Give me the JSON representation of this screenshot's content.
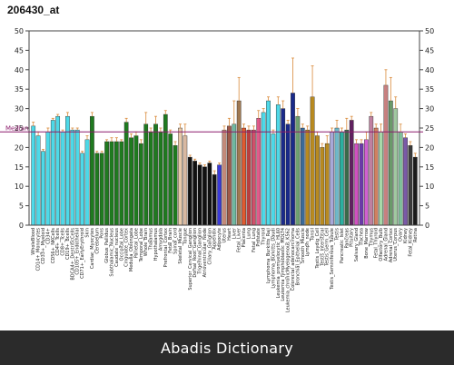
{
  "chart_data": {
    "type": "bar",
    "title": "206430_at",
    "ylim": [
      0,
      50
    ],
    "yticks": [
      "0",
      "5",
      "10",
      "15",
      "20",
      "25",
      "30",
      "35",
      "40",
      "45",
      "50"
    ],
    "median_value": 24,
    "median_label": "Median",
    "median_color": "#8b1a6b",
    "categories": [
      "WholeBlood",
      "CD14+_Monocytes",
      "CD33+_Myeloid",
      "CD34+",
      "CD56+_NKCells",
      "CD4+_Tcells",
      "CD8+_Tcells",
      "CD19+_Bcells",
      "BDCA4+_DentriticCells",
      "CD105+_Endothelial",
      "CD71+_EarlyErythroid",
      "Skin",
      "Cardiac_Myocytes",
      "Cerebellum",
      "Pons",
      "Globus_Pallidus",
      "Subthalamic_Nucleus",
      "Caudate_nucleus",
      "Occipital_Lobe",
      "Cingulate_Cortex",
      "Medulla_Oblongata",
      "Parietal_Lobe",
      "Temporal_Lobe",
      "Whole_Brain",
      "Thalamus",
      "Hypothalamus",
      "Amygdala",
      "Prefrontal_Cortex",
      "Fetal_Brain",
      "Spinal_cord",
      "Skeletal_Muscle",
      "Tongue",
      "Superior_Cervical_Ganglion",
      "Dorsal_Root_Ganglion",
      "Trigeminal_Ganglion",
      "Atrioventricular_Node",
      "Ciliary_Ganglion",
      "Appendix",
      "Adipocyte",
      "Uterus",
      "Heart",
      "Liver",
      "Fetal_Liver",
      "Placenta",
      "Lung",
      "Fetal_Lung",
      "Prostate",
      "Thyroid",
      "Lymphoma_Burkitts_Raji",
      "Lymphoma_Burkitts_Daudi",
      "Leukemia_promyelocytic_HL60",
      "Leukemia_lymphoblastic_MOLT4",
      "Leukemia_chronicMyelogenous_K562",
      "Colorectal_adenocarcinoma",
      "Bronchial_Epithelial_Cells",
      "Smooth_Muscle",
      "Lymph_node",
      "Tonsil",
      "Testis_Leydig_Cell",
      "Testis_Interstitial",
      "Testis_Germ_Cell",
      "Testis_Seminiferous_Tubule",
      "Testis",
      "Pancreatic_Islet",
      "Pancreas",
      "Pituitary",
      "Salivary_Gland",
      "Trachea",
      "Bone_Marrow",
      "Thymus",
      "Fetal_Thyroid",
      "Olfactory_Bulb",
      "Adrenal_Gland",
      "Adrenal_Cortex",
      "Uterus_Corpus",
      "Ovary",
      "Kidney",
      "Fetal_Kidney",
      "Retina"
    ],
    "x_tick_labels": [
      "WholeBlood",
      "CD14+_Monocytes",
      "CD33+_Myeloid",
      "CD34+",
      "CD56+_NKCells",
      "CD4+_Tcells",
      "CD8+_Tcells",
      "CD19+_Bcells",
      "BDCA4+_DentriticCells",
      "CD105+_Endothelial",
      "CD71+_EarlyErythroid",
      "Skin",
      "Cardiac_Myocytes",
      "Cerebellum",
      "Pons",
      "Globus_Pallidus",
      "Subthalamic_Nucleus",
      "Caudate_nucleus",
      "Occipital_Lobe",
      "Cingulate_Cortex",
      "Medulla_Oblongata",
      "Parietal_Lobe",
      "Temporal_Lobe",
      "Whole_Brain",
      "Thalamus",
      "Hypothalamus",
      "Amygdala",
      "Prefrontal_Cortex",
      "Fetal_Brain",
      "Spinal_cord",
      "Skeletal_Muscle",
      "Tongue",
      "Superior_Cervical_Ganglion",
      "Dorsal_Root_Ganglion",
      "Trigeminal_Ganglion",
      "Atrioventricular_Node",
      "Ciliary_Ganglion",
      "Appendix",
      "Adipocyte",
      "Uterus",
      "Heart",
      "Liver",
      "Fetal_Liver",
      "Placenta",
      "Lung",
      "Fetal_Lung",
      "Prostate",
      "Thyroid",
      "Lymphoma_Burkitts_Raji",
      "Lymphoma_Burkitts_Daudi",
      "Leukemia_promyelocytic_HL60",
      "Leukemia_lymphoblastic_MOLT4",
      "Leukemia_chronicMyelogenous_K562",
      "Colorectal_adenocarcinoma",
      "Bronchial_Epithelial_Cells",
      "Smooth_Muscle",
      "Lymph_node",
      "Tonsil",
      "Testis_Leydig_Cell",
      "Testis_Interstitial",
      "Testis_Germ_Cell",
      "Testis_Seminiferous_Tubule",
      "Testis",
      "Pancreatic_Islet",
      "Pancreas",
      "Pituitary",
      "Salivary_Gland",
      "Trachea",
      "Bone_Marrow",
      "Thymus",
      "Fetal_Thyroid",
      "Olfactory_Bulb",
      "Adrenal_Gland",
      "Adrenal_Cortex",
      "Uterus_Corpus",
      "Ovary",
      "Kidney",
      "Fetal_Kidney",
      "Retina"
    ],
    "values": [
      25.5,
      23,
      19,
      24,
      27,
      28,
      24,
      28,
      24.5,
      24.5,
      18.5,
      22,
      28,
      18.5,
      18.5,
      21.5,
      21.5,
      21.5,
      21.5,
      26.5,
      22.5,
      23,
      21,
      26,
      24,
      26,
      24,
      28.5,
      23.5,
      20.5,
      25,
      23,
      17.5,
      16.5,
      15.5,
      15,
      16,
      13,
      15.5,
      24.5,
      25.5,
      26,
      32,
      25,
      24.5,
      24.5,
      27.5,
      29,
      32,
      23.5,
      31,
      30,
      26,
      34,
      28,
      25,
      24.5,
      33,
      23,
      20,
      21,
      24,
      25,
      24,
      24.5,
      27,
      21,
      21,
      22,
      28,
      25,
      24,
      36,
      32,
      30,
      24,
      22.5,
      20.5,
      17.5
    ],
    "errors": [
      1,
      1,
      0.5,
      1,
      0.5,
      0.5,
      0.5,
      1,
      0.5,
      0.5,
      0.5,
      1,
      1,
      0.5,
      0.5,
      0.5,
      1,
      1,
      0.5,
      1,
      1,
      1,
      1,
      3,
      1,
      2,
      1,
      1,
      1,
      1,
      1,
      3,
      0.5,
      0.5,
      0.5,
      0.5,
      0.5,
      1,
      0.5,
      1,
      2,
      6,
      6,
      1,
      1,
      1,
      2,
      1,
      1,
      1,
      2,
      2,
      1,
      9,
      2,
      1,
      1,
      8,
      1,
      1,
      2,
      1,
      2,
      1,
      3,
      1,
      1,
      1,
      2,
      1,
      1,
      2,
      4,
      6,
      3,
      2,
      1,
      1,
      1
    ],
    "bar_colors": [
      "#4dd9e8",
      "#4dd9e8",
      "#4dd9e8",
      "#4dd9e8",
      "#4dd9e8",
      "#4dd9e8",
      "#4dd9e8",
      "#4dd9e8",
      "#4dd9e8",
      "#4dd9e8",
      "#4dd9e8",
      "#4dd9e8",
      "#1f7a1f",
      "#1f7a1f",
      "#1f7a1f",
      "#1f7a1f",
      "#1f7a1f",
      "#1f7a1f",
      "#1f7a1f",
      "#1f7a1f",
      "#1f7a1f",
      "#1f7a1f",
      "#1f7a1f",
      "#1f7a1f",
      "#1f7a1f",
      "#1f7a1f",
      "#1f7a1f",
      "#1f7a1f",
      "#1f7a1f",
      "#1f7a1f",
      "#e8c9a8",
      "#d8b8a0",
      "#111111",
      "#111111",
      "#111111",
      "#111111",
      "#111111",
      "#111111",
      "#3a3ad9",
      "#c48a7a",
      "#a05a4a",
      "#6fb8a0",
      "#a07850",
      "#e05a30",
      "#b84040",
      "#d0506a",
      "#e05a8a",
      "#4dd9e8",
      "#4dd9e8",
      "#4dd9e8",
      "#4dd9e8",
      "#1a2a8a",
      "#1a2a8a",
      "#1a2a8a",
      "#6fa070",
      "#3a6a9a",
      "#b88a20",
      "#b88a20",
      "#b88a20",
      "#b88a20",
      "#b88a20",
      "#a8a8d8",
      "#6fb8c8",
      "#2ab0a0",
      "#3a6a4a",
      "#602060",
      "#d050c0",
      "#6a3aa8",
      "#d060d0",
      "#c080a0",
      "#d08060",
      "#a8d8a8",
      "#c88080",
      "#6a9a6a",
      "#a0c8a0",
      "#7fbf9a",
      "#7a5aa8",
      "#3a3a3a",
      "#1a1a1a"
    ]
  },
  "footer": {
    "text": "Abadis Dictionary"
  }
}
